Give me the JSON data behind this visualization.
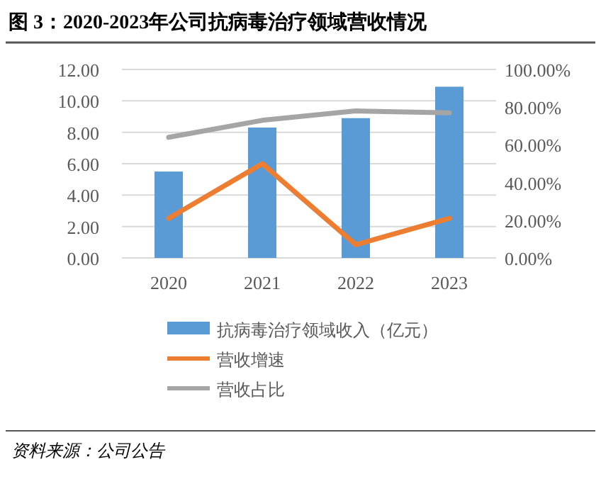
{
  "chart_data": {
    "type": "bar",
    "title": "图 3：2020-2023年公司抗病毒治疗领域营收情况",
    "categories": [
      "2020",
      "2021",
      "2022",
      "2023"
    ],
    "series": [
      {
        "name": "抗病毒治疗领域收入（亿元）",
        "color": "#5b9bd5",
        "values": [
          5.5,
          8.3,
          8.9,
          10.9
        ]
      },
      {
        "name": "营收增速",
        "type": "line",
        "axis": "y2",
        "color": "#ed7d31",
        "values": [
          21,
          50,
          7,
          21
        ]
      },
      {
        "name": "营收占比",
        "type": "line",
        "axis": "y2",
        "color": "#a5a5a5",
        "values": [
          64,
          73,
          78,
          77
        ]
      }
    ],
    "ylim": [
      0,
      12
    ],
    "yticks": [
      {
        "value": 0,
        "label": "0.00"
      },
      {
        "value": 2,
        "label": "2.00"
      },
      {
        "value": 4,
        "label": "4.00"
      },
      {
        "value": 6,
        "label": "6.00"
      },
      {
        "value": 8,
        "label": "8.00"
      },
      {
        "value": 10,
        "label": "10.00"
      },
      {
        "value": 12,
        "label": "12.00"
      }
    ],
    "y2lim": [
      0,
      100
    ],
    "y2ticks": [
      {
        "value": 0,
        "label": "0.00%"
      },
      {
        "value": 20,
        "label": "20.00%"
      },
      {
        "value": 40,
        "label": "40.00%"
      },
      {
        "value": 60,
        "label": "60.00%"
      },
      {
        "value": 80,
        "label": "80.00%"
      },
      {
        "value": 100,
        "label": "100.00%"
      }
    ],
    "grid": "y",
    "legend": "bottom",
    "marker": "none",
    "annotations": [
      "资料来源：公司公告"
    ]
  }
}
